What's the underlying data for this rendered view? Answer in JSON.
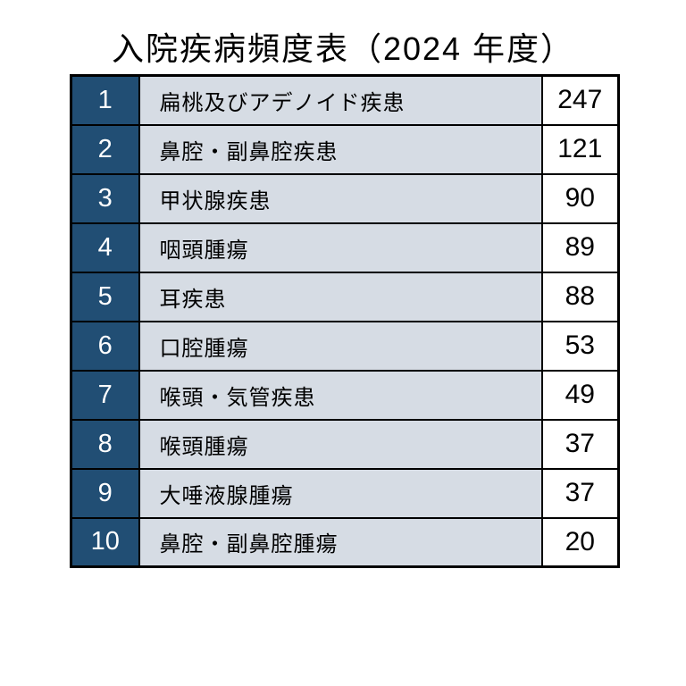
{
  "title": "入院疾病頻度表（2024 年度）",
  "colors": {
    "rank_bg": "#214E74",
    "name_bg": "#D6DCE4",
    "count_bg": "#FFFFFF",
    "border": "#000000",
    "rank_text": "#FFFFFF",
    "body_text": "#000000"
  },
  "table": {
    "rows": [
      {
        "rank": "1",
        "name": "扁桃及びアデノイド疾患",
        "count": "247"
      },
      {
        "rank": "2",
        "name": "鼻腔・副鼻腔疾患",
        "count": "121"
      },
      {
        "rank": "3",
        "name": "甲状腺疾患",
        "count": "90"
      },
      {
        "rank": "4",
        "name": "咽頭腫瘍",
        "count": "89"
      },
      {
        "rank": "5",
        "name": "耳疾患",
        "count": "88"
      },
      {
        "rank": "6",
        "name": "口腔腫瘍",
        "count": "53"
      },
      {
        "rank": "7",
        "name": "喉頭・気管疾患",
        "count": "49"
      },
      {
        "rank": "8",
        "name": "喉頭腫瘍",
        "count": "37"
      },
      {
        "rank": "9",
        "name": "大唾液腺腫瘍",
        "count": "37"
      },
      {
        "rank": "10",
        "name": "鼻腔・副鼻腔腫瘍",
        "count": "20"
      }
    ]
  },
  "chart_data": {
    "type": "table",
    "title": "入院疾病頻度表（2024 年度）",
    "categories": [
      "扁桃及びアデノイド疾患",
      "鼻腔・副鼻腔疾患",
      "甲状腺疾患",
      "咽頭腫瘍",
      "耳疾患",
      "口腔腫瘍",
      "喉頭・気管疾患",
      "喉頭腫瘍",
      "大唾液腺腫瘍",
      "鼻腔・副鼻腔腫瘍"
    ],
    "values": [
      247,
      121,
      90,
      89,
      88,
      53,
      49,
      37,
      37,
      20
    ],
    "ranks": [
      1,
      2,
      3,
      4,
      5,
      6,
      7,
      8,
      9,
      10
    ]
  }
}
